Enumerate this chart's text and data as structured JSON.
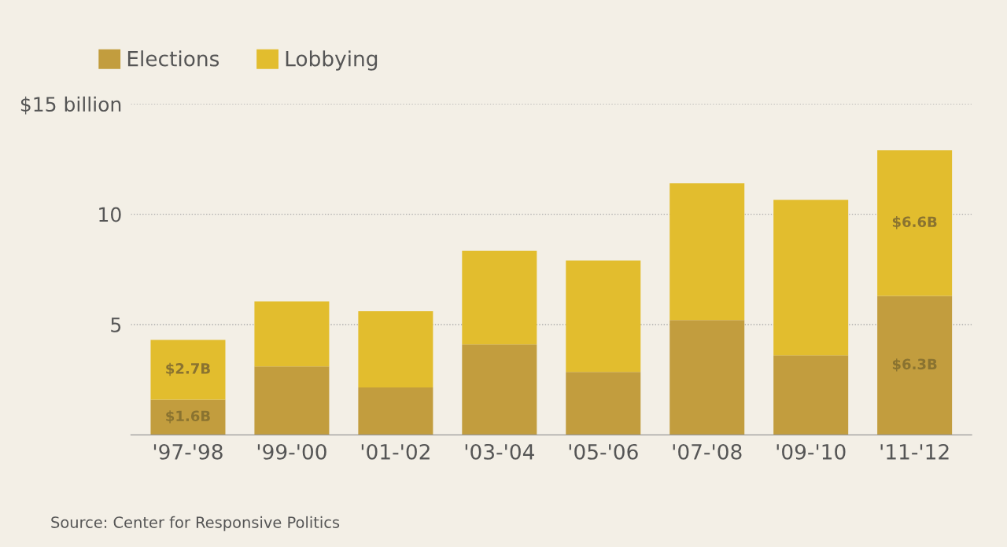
{
  "chart_data": {
    "type": "bar",
    "stacked": true,
    "categories": [
      "'97-'98",
      "'99-'00",
      "'01-'02",
      "'03-'04",
      "'05-'06",
      "'07-'08",
      "'09-'10",
      "'11-'12"
    ],
    "series": [
      {
        "name": "Elections",
        "color": "#c29d3e",
        "values": [
          1.6,
          3.1,
          2.15,
          4.1,
          2.85,
          5.2,
          3.6,
          6.3
        ],
        "value_labels": [
          "$1.6B",
          null,
          null,
          null,
          null,
          null,
          null,
          "$6.3B"
        ]
      },
      {
        "name": "Lobbying",
        "color": "#e2bd2e",
        "values": [
          2.7,
          2.95,
          3.45,
          4.25,
          5.05,
          6.2,
          7.05,
          6.6
        ],
        "value_labels": [
          "$2.7B",
          null,
          null,
          null,
          null,
          null,
          null,
          "$6.6B"
        ]
      }
    ],
    "ylim": [
      0,
      15
    ],
    "yticks": [
      {
        "value": 5,
        "label": "5"
      },
      {
        "value": 10,
        "label": "10"
      },
      {
        "value": 15,
        "label": "$15 billion"
      }
    ],
    "grid": "y",
    "legend": "top left",
    "annotations": [
      "Source: Center for Responsive Politics"
    ]
  }
}
